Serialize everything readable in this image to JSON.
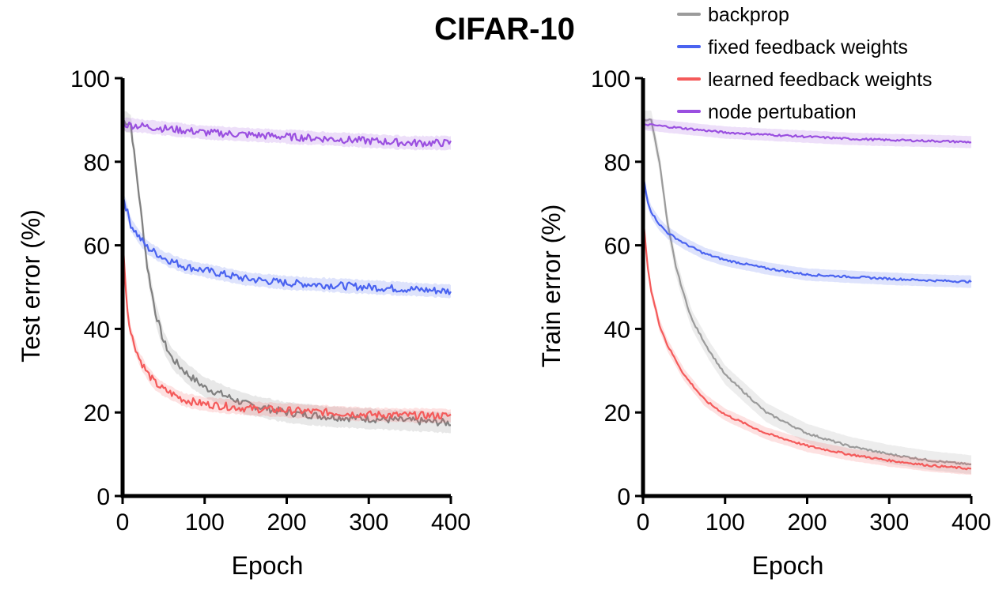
{
  "title": "CIFAR-10",
  "legend": [
    {
      "label": "backprop",
      "color": "#9b9b9b"
    },
    {
      "label": "fixed feedback weights",
      "color": "#4a63f0"
    },
    {
      "label": "learned feedback weights",
      "color": "#f45a5a"
    },
    {
      "label": "node pertubation",
      "color": "#9a4fe0"
    }
  ],
  "chart_data": [
    {
      "type": "line",
      "xlabel": "Epoch",
      "ylabel": "Test error (%)",
      "xlim": [
        0,
        400
      ],
      "ylim": [
        0,
        100
      ],
      "xticks": [
        "0",
        "100",
        "200",
        "300",
        "400"
      ],
      "yticks": [
        "0",
        "20",
        "40",
        "60",
        "80",
        "100"
      ],
      "series": [
        {
          "name": "backprop",
          "color": "#808080",
          "x": [
            0,
            10,
            20,
            30,
            40,
            50,
            60,
            80,
            100,
            150,
            200,
            250,
            300,
            350,
            400
          ],
          "y": [
            90,
            89,
            72,
            55,
            44,
            37,
            33,
            29,
            26,
            22,
            20,
            19,
            18.5,
            18,
            17.5
          ]
        },
        {
          "name": "fixed feedback weights",
          "color": "#4a63f0",
          "x": [
            0,
            10,
            20,
            30,
            50,
            75,
            100,
            150,
            200,
            250,
            300,
            350,
            400
          ],
          "y": [
            72,
            65,
            62,
            59.5,
            57,
            55,
            54,
            52,
            51,
            50.5,
            50,
            49.5,
            49
          ]
        },
        {
          "name": "learned feedback weights",
          "color": "#f45a5a",
          "x": [
            0,
            5,
            10,
            20,
            30,
            40,
            50,
            75,
            100,
            150,
            200,
            250,
            300,
            350,
            400
          ],
          "y": [
            62,
            46,
            39,
            33,
            29.5,
            27,
            25.5,
            23,
            22,
            21,
            20.5,
            20,
            19.5,
            19.3,
            19.2
          ]
        },
        {
          "name": "node pertubation",
          "color": "#9a4fe0",
          "x": [
            0,
            50,
            100,
            150,
            200,
            250,
            300,
            350,
            400
          ],
          "y": [
            89,
            88,
            87,
            86.5,
            86,
            85.5,
            85,
            84.5,
            84.5
          ]
        }
      ]
    },
    {
      "type": "line",
      "xlabel": "Epoch",
      "ylabel": "Train error (%)",
      "xlim": [
        0,
        400
      ],
      "ylim": [
        0,
        100
      ],
      "xticks": [
        "0",
        "100",
        "200",
        "300",
        "400"
      ],
      "yticks": [
        "0",
        "20",
        "40",
        "60",
        "80",
        "100"
      ],
      "series": [
        {
          "name": "backprop",
          "color": "#9b9b9b",
          "x": [
            0,
            10,
            20,
            30,
            40,
            50,
            60,
            80,
            100,
            150,
            200,
            250,
            300,
            350,
            400
          ],
          "y": [
            90,
            90,
            80,
            65,
            55,
            48,
            42,
            35,
            29,
            20,
            15,
            12,
            10,
            8.5,
            7.5
          ]
        },
        {
          "name": "fixed feedback weights",
          "color": "#4a63f0",
          "x": [
            0,
            5,
            10,
            20,
            30,
            50,
            75,
            100,
            150,
            200,
            250,
            300,
            350,
            400
          ],
          "y": [
            77,
            71,
            68,
            65,
            63,
            60.5,
            58,
            56.5,
            54.5,
            53,
            52.5,
            52,
            51.6,
            51.3
          ]
        },
        {
          "name": "learned feedback weights",
          "color": "#f45a5a",
          "x": [
            0,
            5,
            10,
            20,
            30,
            50,
            75,
            100,
            150,
            200,
            250,
            300,
            350,
            400
          ],
          "y": [
            67,
            56,
            49,
            41,
            36,
            29,
            23,
            19.5,
            15,
            12,
            10,
            8.5,
            7.3,
            6.5
          ]
        },
        {
          "name": "node pertubation",
          "color": "#9a4fe0",
          "x": [
            0,
            50,
            100,
            150,
            200,
            250,
            300,
            350,
            400
          ],
          "y": [
            89,
            88,
            87,
            86.5,
            86,
            85.5,
            85.2,
            85,
            84.7
          ]
        }
      ]
    }
  ]
}
